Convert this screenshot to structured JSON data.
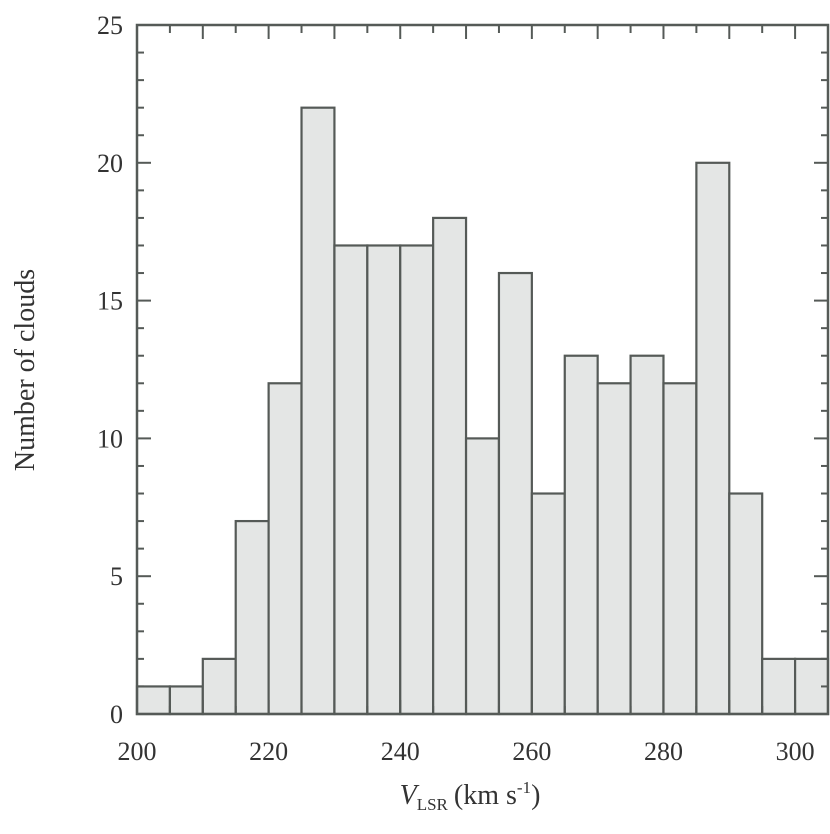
{
  "chart_data": {
    "type": "bar",
    "title": "",
    "xlabel": {
      "var": "V",
      "sub": "LSR",
      "unit": "(km s",
      "sup": "-1",
      "close": ")"
    },
    "ylabel": "Number of clouds",
    "xlim": [
      200,
      305
    ],
    "ylim": [
      0,
      25
    ],
    "bin_width": 5,
    "x_ticks": [
      200,
      220,
      240,
      260,
      280,
      300
    ],
    "y_ticks": [
      0,
      5,
      10,
      15,
      20,
      25
    ],
    "bins": [
      {
        "start": 200,
        "value": 1
      },
      {
        "start": 205,
        "value": 1
      },
      {
        "start": 210,
        "value": 2
      },
      {
        "start": 215,
        "value": 7
      },
      {
        "start": 220,
        "value": 12
      },
      {
        "start": 225,
        "value": 22
      },
      {
        "start": 230,
        "value": 17
      },
      {
        "start": 235,
        "value": 17
      },
      {
        "start": 240,
        "value": 17
      },
      {
        "start": 245,
        "value": 18
      },
      {
        "start": 250,
        "value": 10
      },
      {
        "start": 255,
        "value": 16
      },
      {
        "start": 260,
        "value": 8
      },
      {
        "start": 265,
        "value": 13
      },
      {
        "start": 270,
        "value": 12
      },
      {
        "start": 275,
        "value": 13
      },
      {
        "start": 280,
        "value": 12
      },
      {
        "start": 285,
        "value": 20
      },
      {
        "start": 290,
        "value": 8
      },
      {
        "start": 295,
        "value": 2
      },
      {
        "start": 300,
        "value": 2
      }
    ],
    "grid": false,
    "legend": "none"
  }
}
